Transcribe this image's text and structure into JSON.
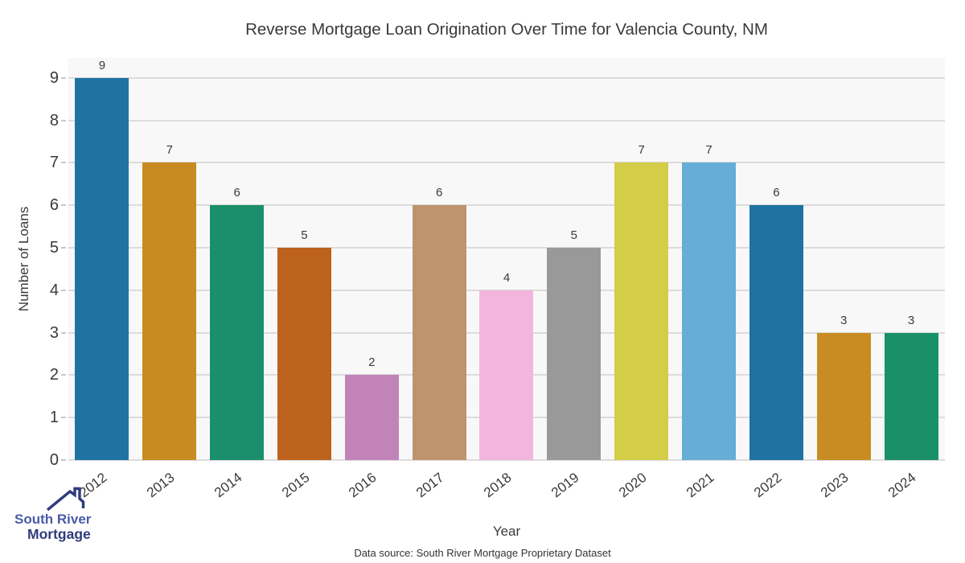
{
  "title": "Reverse Mortgage Loan Origination Over Time for Valencia County, NM",
  "source_note": "Data source: South River Mortgage Proprietary Dataset",
  "logo": {
    "line1": "South River",
    "line2": "Mortgage",
    "line1_color": "#4a5ba7",
    "line2_color": "#2e3b7d",
    "roof_color": "#2e3b7d"
  },
  "chart_data": {
    "type": "bar",
    "categories": [
      "2012",
      "2013",
      "2014",
      "2015",
      "2016",
      "2017",
      "2018",
      "2019",
      "2020",
      "2021",
      "2022",
      "2023",
      "2024"
    ],
    "values": [
      9,
      7,
      6,
      5,
      2,
      6,
      4,
      5,
      7,
      7,
      6,
      3,
      3
    ],
    "bar_colors": [
      "#1f73a3",
      "#c78b21",
      "#1a8f6b",
      "#bc621c",
      "#c284b8",
      "#bd946e",
      "#f2b5de",
      "#999999",
      "#d3cd47",
      "#67aed6",
      "#1f73a3",
      "#c88c22",
      "#1a9069"
    ],
    "title": "Reverse Mortgage Loan Origination Over Time for Valencia County, NM",
    "xlabel": "Year",
    "ylabel": "Number of Loans",
    "ylim": [
      0,
      9.47
    ],
    "yticks": [
      0,
      1,
      2,
      3,
      4,
      5,
      6,
      7,
      8,
      9
    ],
    "grid": true,
    "legend": false,
    "plot_bg": "#f8f8f8",
    "grid_color": "#dcdcdc",
    "text_color": "#3a3a3a"
  }
}
